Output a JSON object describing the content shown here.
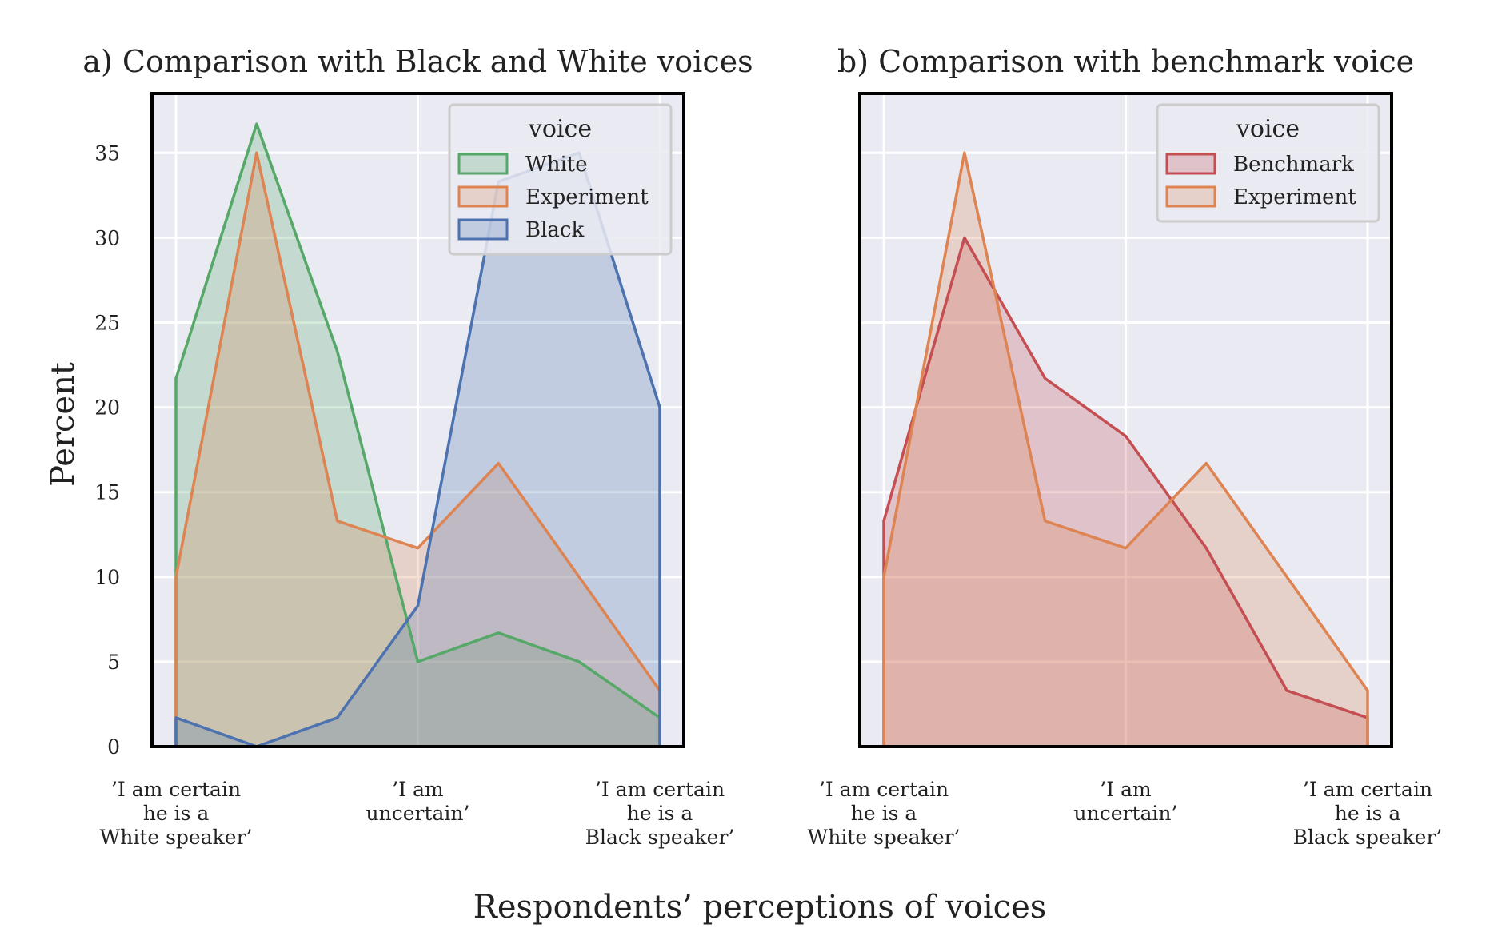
{
  "figure": {
    "xlabel": "Respondents’ perceptions of voices",
    "ylabel": "Percent"
  },
  "chart_data": [
    {
      "type": "area",
      "title": "a) Comparison with Black and White voices",
      "categories": [
        "’I am certain\nhe is a\nWhite speaker’",
        "",
        "",
        "’I am\nuncertain’",
        "",
        "",
        "’I am certain\nhe is a\nBlack speaker’"
      ],
      "yticks": [
        0,
        5,
        10,
        15,
        20,
        25,
        30,
        35
      ],
      "ylim": [
        0,
        38.5
      ],
      "grid": true,
      "legend_title": "voice",
      "legend_position": "top-right",
      "series": [
        {
          "name": "White",
          "color": "#55a868",
          "values": [
            21.7,
            36.7,
            23.3,
            5.0,
            6.7,
            5.0,
            1.7
          ]
        },
        {
          "name": "Experiment",
          "color": "#dd8452",
          "values": [
            10.0,
            35.0,
            13.3,
            11.7,
            16.7,
            10.0,
            3.3
          ]
        },
        {
          "name": "Black",
          "color": "#4c72b0",
          "values": [
            1.7,
            0.0,
            1.7,
            8.3,
            33.3,
            35.0,
            20.0
          ]
        }
      ]
    },
    {
      "type": "area",
      "title": "b) Comparison with benchmark voice",
      "categories": [
        "’I am certain\nhe is a\nWhite speaker’",
        "",
        "",
        "’I am\nuncertain’",
        "",
        "",
        "’I am certain\nhe is a\nBlack speaker’"
      ],
      "yticks": [
        0,
        5,
        10,
        15,
        20,
        25,
        30,
        35
      ],
      "ylim": [
        0,
        38.5
      ],
      "grid": true,
      "legend_title": "voice",
      "legend_position": "top-right",
      "series": [
        {
          "name": "Benchmark",
          "color": "#c44e52",
          "values": [
            13.3,
            30.0,
            21.7,
            18.3,
            11.7,
            3.3,
            1.7
          ]
        },
        {
          "name": "Experiment",
          "color": "#dd8452",
          "values": [
            10.0,
            35.0,
            13.3,
            11.7,
            16.7,
            10.0,
            3.3
          ]
        }
      ]
    }
  ]
}
